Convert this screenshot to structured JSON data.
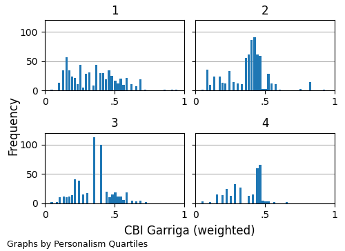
{
  "chart_data": [
    {
      "type": "bar",
      "title": "1",
      "x": [
        0.05,
        0.1,
        0.13,
        0.155,
        0.175,
        0.195,
        0.215,
        0.235,
        0.255,
        0.275,
        0.295,
        0.32,
        0.35,
        0.37,
        0.4,
        0.42,
        0.44,
        0.46,
        0.48,
        0.505,
        0.525,
        0.545,
        0.565,
        0.585,
        0.62,
        0.655,
        0.685,
        0.72,
        0.86,
        0.915,
        0.945
      ],
      "values": [
        2,
        13,
        35,
        57,
        34,
        24,
        22,
        11,
        44,
        5,
        29,
        31,
        9,
        44,
        30,
        30,
        19,
        34,
        25,
        17,
        12,
        20,
        10,
        22,
        11,
        8,
        19,
        2,
        2,
        2,
        2
      ],
      "xlim": [
        0,
        1
      ],
      "ylim": [
        0,
        120
      ],
      "xticks": [
        0,
        {
          "value": 0.5,
          "label": ".5"
        },
        1
      ],
      "yticks": [
        0,
        50,
        100
      ],
      "grid": "y"
    },
    {
      "type": "bar",
      "title": "2",
      "x": [
        0.05,
        0.085,
        0.105,
        0.135,
        0.175,
        0.195,
        0.215,
        0.245,
        0.275,
        0.305,
        0.335,
        0.365,
        0.385,
        0.405,
        0.425,
        0.445,
        0.465,
        0.485,
        0.505,
        0.525,
        0.545,
        0.575,
        0.605,
        0.755,
        0.825,
        0.925
      ],
      "values": [
        2,
        36,
        10,
        24,
        24,
        13,
        12,
        33,
        14,
        12,
        11,
        55,
        61,
        86,
        91,
        62,
        59,
        3,
        3,
        29,
        12,
        11,
        2,
        3,
        15,
        2
      ],
      "xlim": [
        0,
        1
      ],
      "ylim": [
        0,
        120
      ],
      "xticks": [
        0,
        {
          "value": 0.5,
          "label": ".5"
        },
        1
      ],
      "yticks": [
        0,
        50,
        100
      ],
      "grid": "y",
      "tick_labels": "x"
    },
    {
      "type": "bar",
      "title": "3",
      "x": [
        0.05,
        0.085,
        0.105,
        0.135,
        0.155,
        0.175,
        0.195,
        0.215,
        0.245,
        0.275,
        0.305,
        0.355,
        0.405,
        0.445,
        0.465,
        0.485,
        0.505,
        0.525,
        0.545,
        0.565,
        0.585,
        0.625,
        0.655,
        0.685,
        0.725
      ],
      "values": [
        2,
        2,
        10,
        11,
        10,
        12,
        14,
        41,
        39,
        15,
        18,
        113,
        100,
        20,
        10,
        15,
        19,
        12,
        11,
        6,
        19,
        5,
        3,
        4,
        2
      ],
      "xlim": [
        0,
        1
      ],
      "ylim": [
        0,
        120
      ],
      "xticks": [
        0,
        {
          "value": 0.5,
          "label": ".5"
        },
        1
      ],
      "yticks": [
        0,
        50,
        100
      ],
      "grid": "y"
    },
    {
      "type": "bar",
      "title": "4",
      "x": [
        0.05,
        0.105,
        0.155,
        0.195,
        0.225,
        0.255,
        0.285,
        0.325,
        0.385,
        0.415,
        0.445,
        0.465,
        0.485,
        0.505,
        0.525,
        0.565,
        0.655
      ],
      "values": [
        3,
        2,
        15,
        14,
        25,
        13,
        33,
        27,
        13,
        15,
        60,
        65,
        5,
        3,
        3,
        2,
        2
      ],
      "xlim": [
        0,
        1
      ],
      "ylim": [
        0,
        120
      ],
      "xticks": [
        0,
        {
          "value": 0.5,
          "label": ".5"
        },
        1
      ],
      "yticks": [
        0,
        50,
        100
      ],
      "grid": "y",
      "tick_labels": "x"
    }
  ],
  "xlabel": "CBI Garriga (weighted)",
  "ylabel": "Frequency",
  "annotations": [
    "Graphs by Personalism Quartiles"
  ]
}
